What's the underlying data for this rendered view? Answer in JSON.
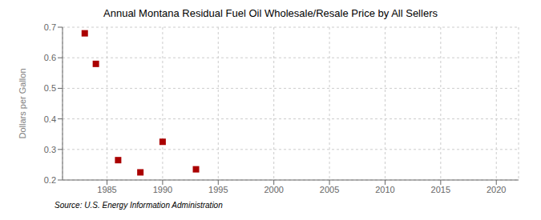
{
  "chart_data": {
    "type": "scatter",
    "title": "Annual Montana Residual Fuel Oil Wholesale/Resale Price by All Sellers",
    "ylabel": "Dollars per Gallon",
    "annotations": [
      "Source: U.S. Energy Information Administration"
    ],
    "x": [
      1983,
      1984,
      1986,
      1988,
      1990,
      1993
    ],
    "values": [
      0.68,
      0.58,
      0.265,
      0.225,
      0.325,
      0.235
    ],
    "color": "#aa0000",
    "marker": "square",
    "xlim": [
      1981,
      2022
    ],
    "ylim": [
      0.2,
      0.7
    ],
    "xticks": [
      1985,
      1990,
      1995,
      2000,
      2005,
      2010,
      2015,
      2020
    ],
    "yticks": [
      0.2,
      0.3,
      0.4,
      0.5,
      0.6,
      0.7
    ],
    "grid": true
  }
}
